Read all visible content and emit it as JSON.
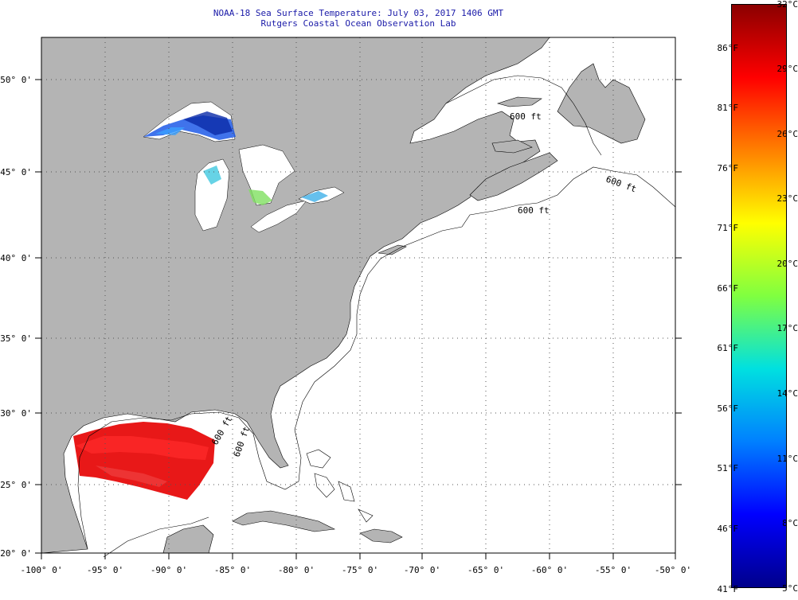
{
  "title": {
    "line1": "NOAA-18 Sea Surface Temperature:  July 03, 2017 1406 GMT",
    "line2": "Rutgers Coastal Ocean Observation Lab"
  },
  "map": {
    "lon_range": [
      -100,
      -50
    ],
    "lat_range": [
      20,
      52.5
    ],
    "lon_ticks": [
      "-100° 0'",
      "-95° 0'",
      "-90° 0'",
      "-85° 0'",
      "-80° 0'",
      "-75° 0'",
      "-70° 0'",
      "-65° 0'",
      "-60° 0'",
      "-55° 0'",
      "-50° 0'"
    ],
    "lat_ticks": [
      "20° 0'",
      "25° 0'",
      "30° 0'",
      "35° 0'",
      "40° 0'",
      "45° 0'",
      "50° 0'"
    ],
    "land_color": "#b4b4b4",
    "ocean_nodata_color": "#ffffff",
    "isobath_labels": [
      "600 ft",
      "600 ft",
      "600 ft",
      "600 ft",
      "600 ft"
    ]
  },
  "colorbar": {
    "celsius": [
      "32°C",
      "29°C",
      "26°C",
      "23°C",
      "20°C",
      "17°C",
      "14°C",
      "11°C",
      "8°C",
      "5°C"
    ],
    "fahrenheit": [
      "86°F",
      "81°F",
      "76°F",
      "71°F",
      "66°F",
      "61°F",
      "56°F",
      "51°F",
      "46°F",
      "41°F"
    ],
    "colors": [
      "#8b0000",
      "#ff0000",
      "#ff8000",
      "#ffff00",
      "#80ff40",
      "#00e0e0",
      "#0080ff",
      "#0000ff",
      "#00008b"
    ]
  }
}
